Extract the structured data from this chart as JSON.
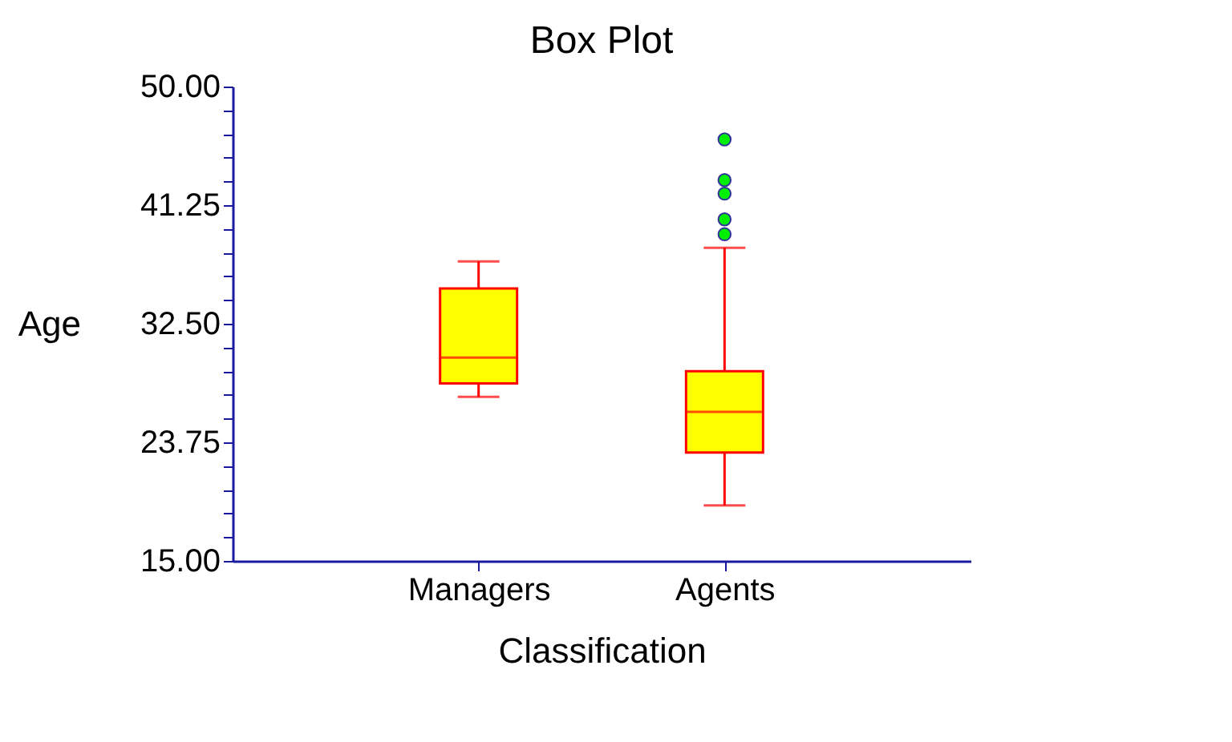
{
  "chart_data": {
    "type": "box",
    "title": "Box Plot",
    "xlabel": "Classification",
    "ylabel": "Age",
    "categories": [
      "Managers",
      "Agents"
    ],
    "series": [
      {
        "color": "#ffff00",
        "boxes": [
          {
            "low": 27.1,
            "q1": 28.1,
            "median": 30.0,
            "q3": 35.1,
            "high": 37.1
          },
          {
            "low": 19.1,
            "q1": 23.0,
            "median": 26.0,
            "q3": 29.0,
            "high": 38.1,
            "outliers": [
              46.1,
              43.1,
              42.1,
              40.2,
              39.1
            ]
          }
        ]
      }
    ],
    "ylim": [
      15,
      50
    ],
    "yticks": [
      {
        "value": 15,
        "label": "15.00"
      },
      {
        "value": 16.75,
        "label": null
      },
      {
        "value": 18.5,
        "label": null
      },
      {
        "value": 20.25,
        "label": null
      },
      {
        "value": 22,
        "label": null
      },
      {
        "value": 23.75,
        "label": "23.75"
      },
      {
        "value": 25.5,
        "label": null
      },
      {
        "value": 27.25,
        "label": null
      },
      {
        "value": 29,
        "label": null
      },
      {
        "value": 30.75,
        "label": null
      },
      {
        "value": 32.5,
        "label": "32.50"
      },
      {
        "value": 34.25,
        "label": null
      },
      {
        "value": 36,
        "label": null
      },
      {
        "value": 37.75,
        "label": null
      },
      {
        "value": 39.5,
        "label": null
      },
      {
        "value": 41.25,
        "label": "41.25"
      },
      {
        "value": 43,
        "label": null
      },
      {
        "value": 44.75,
        "label": null
      },
      {
        "value": 46.5,
        "label": null
      },
      {
        "value": 48.25,
        "label": null
      },
      {
        "value": 50,
        "label": "50.00"
      }
    ],
    "grid": false
  }
}
